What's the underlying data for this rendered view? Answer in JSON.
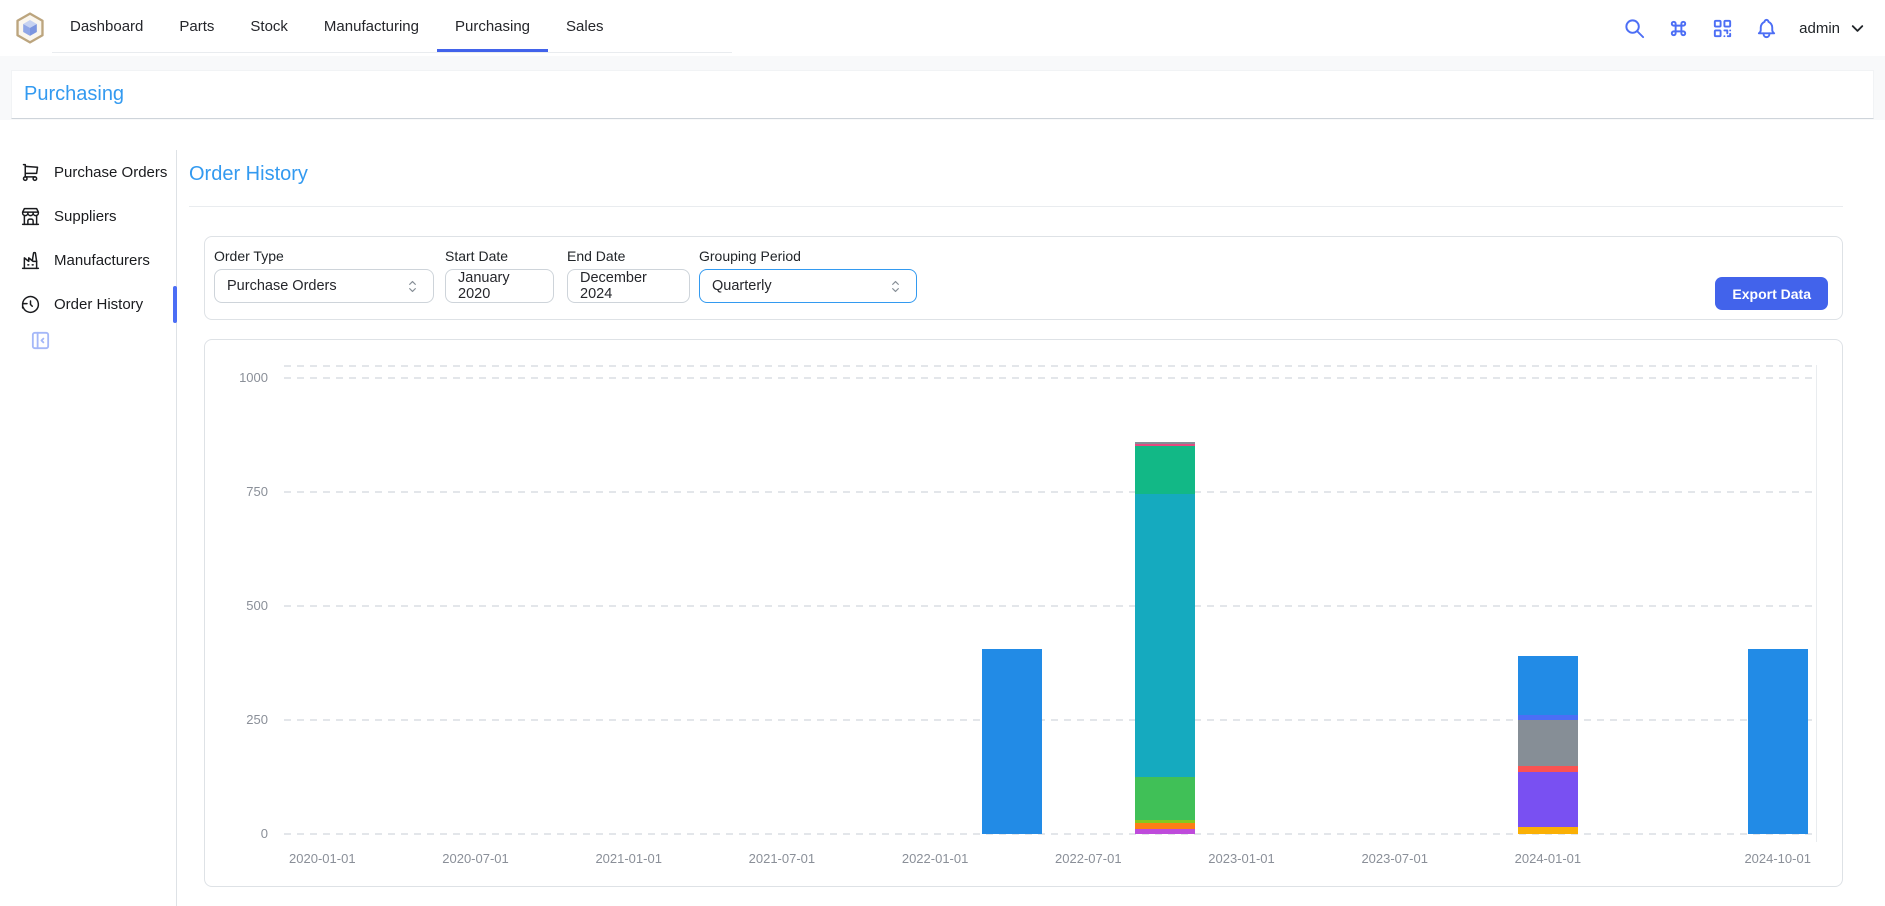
{
  "topbar": {
    "tabs": [
      {
        "label": "Dashboard",
        "active": false
      },
      {
        "label": "Parts",
        "active": false
      },
      {
        "label": "Stock",
        "active": false
      },
      {
        "label": "Manufacturing",
        "active": false
      },
      {
        "label": "Purchasing",
        "active": true
      },
      {
        "label": "Sales",
        "active": false
      }
    ],
    "icons": [
      "search",
      "command",
      "qrcode",
      "bell"
    ],
    "username": "admin"
  },
  "pageheader": {
    "title": "Purchasing"
  },
  "sidebar": {
    "items": [
      {
        "label": "Purchase Orders",
        "icon": "shopping-cart",
        "active": false
      },
      {
        "label": "Suppliers",
        "icon": "building-store",
        "active": false
      },
      {
        "label": "Manufacturers",
        "icon": "building-factory",
        "active": false
      },
      {
        "label": "Order History",
        "icon": "history",
        "active": true
      }
    ]
  },
  "main": {
    "title": "Order History",
    "filters": [
      {
        "label": "Order Type",
        "value": "Purchase Orders",
        "type": "select",
        "focused": false
      },
      {
        "label": "Start Date",
        "value": "January 2020",
        "type": "input",
        "focused": false
      },
      {
        "label": "End Date",
        "value": "December 2024",
        "type": "input",
        "focused": false
      },
      {
        "label": "Grouping Period",
        "value": "Quarterly",
        "type": "select",
        "focused": true
      }
    ],
    "export_label": "Export Data"
  },
  "colors": {
    "accent_indigo": "#4263eb",
    "icon_blue": "#4c6ef5",
    "heading_blue": "#339af0"
  },
  "chart_data": {
    "type": "stacked-bar",
    "grouping": "Quarterly",
    "ylim": [
      0,
      1050
    ],
    "yticks": [
      0,
      250,
      500,
      750,
      1000
    ],
    "grid": "dashed-horizontal",
    "legend": "none",
    "categories": [
      "2020-01-01",
      "2020-04-01",
      "2020-07-01",
      "2020-10-01",
      "2021-01-01",
      "2021-04-01",
      "2021-07-01",
      "2021-10-01",
      "2022-01-01",
      "2022-04-01",
      "2022-07-01",
      "2022-10-01",
      "2023-01-01",
      "2023-04-01",
      "2023-07-01",
      "2023-10-01",
      "2024-01-01",
      "2024-04-01",
      "2024-07-01",
      "2024-10-01"
    ],
    "x_ticks": [
      {
        "index": 0,
        "label": "2020-01-01"
      },
      {
        "index": 2,
        "label": "2020-07-01"
      },
      {
        "index": 4,
        "label": "2021-01-01"
      },
      {
        "index": 6,
        "label": "2021-07-01"
      },
      {
        "index": 8,
        "label": "2022-01-01"
      },
      {
        "index": 10,
        "label": "2022-07-01"
      },
      {
        "index": 12,
        "label": "2023-01-01"
      },
      {
        "index": 14,
        "label": "2023-07-01"
      },
      {
        "index": 16,
        "label": "2024-01-01"
      },
      {
        "index": 19,
        "label": "2024-10-01"
      }
    ],
    "bars": [
      {
        "category": "2022-04-01",
        "index": 9,
        "total": 405,
        "segments": [
          {
            "color": "blue",
            "value": 405
          }
        ]
      },
      {
        "category": "2022-10-01",
        "index": 11,
        "total": 860,
        "segments": [
          {
            "color": "grape",
            "value": 11
          },
          {
            "color": "orange",
            "value": 13
          },
          {
            "color": "lime",
            "value": 7
          },
          {
            "color": "green",
            "value": 95
          },
          {
            "color": "cyan",
            "value": 620
          },
          {
            "color": "teal",
            "value": 105
          },
          {
            "color": "pink",
            "value": 5
          },
          {
            "color": "gray",
            "value": 4
          }
        ]
      },
      {
        "category": "2024-01-01",
        "index": 16,
        "total": 390,
        "segments": [
          {
            "color": "yellow",
            "value": 15
          },
          {
            "color": "violet",
            "value": 120
          },
          {
            "color": "red",
            "value": 15
          },
          {
            "color": "gray",
            "value": 99
          },
          {
            "color": "indigo",
            "value": 13
          },
          {
            "color": "blue",
            "value": 128
          }
        ]
      },
      {
        "category": "2024-10-01",
        "index": 19,
        "total": 405,
        "segments": [
          {
            "color": "blue",
            "value": 405
          }
        ]
      }
    ],
    "palette": {
      "blue": "#228be6",
      "cyan": "#15aabf",
      "teal": "#12b886",
      "green": "#40c057",
      "lime": "#82c91e",
      "yellow": "#fab005",
      "orange": "#fd7e14",
      "red": "#fa5252",
      "pink": "#e64980",
      "grape": "#be4bdb",
      "violet": "#7950f2",
      "indigo": "#4c6ef5",
      "gray": "#868e96"
    }
  }
}
